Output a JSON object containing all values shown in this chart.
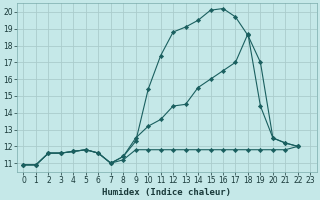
{
  "bg_color": "#c5e8e8",
  "grid_color": "#aacccc",
  "line_color": "#1a5f5f",
  "xlabel": "Humidex (Indice chaleur)",
  "ylabel_ticks": [
    11,
    12,
    13,
    14,
    15,
    16,
    17,
    18,
    19,
    20
  ],
  "xlim": [
    -0.5,
    23.5
  ],
  "ylim": [
    10.5,
    20.5
  ],
  "xticks": [
    0,
    1,
    2,
    3,
    4,
    5,
    6,
    7,
    8,
    9,
    10,
    11,
    12,
    13,
    14,
    15,
    16,
    17,
    18,
    19,
    20,
    21,
    22,
    23
  ],
  "line1_x": [
    0,
    1,
    2,
    3,
    4,
    5,
    6,
    7,
    8,
    9,
    10,
    11,
    12,
    13,
    14,
    15,
    16,
    17,
    18,
    19,
    20,
    21,
    22
  ],
  "line1_y": [
    10.9,
    10.9,
    11.6,
    11.6,
    11.7,
    11.8,
    11.6,
    11.0,
    11.4,
    12.3,
    15.4,
    17.4,
    18.8,
    19.1,
    19.5,
    20.1,
    20.2,
    19.7,
    18.6,
    17.0,
    12.5,
    12.2,
    12.0
  ],
  "line2_x": [
    0,
    1,
    2,
    3,
    4,
    5,
    6,
    7,
    8,
    9,
    10,
    11,
    12,
    13,
    14,
    15,
    16,
    17,
    18,
    19,
    20,
    21,
    22
  ],
  "line2_y": [
    10.9,
    10.9,
    11.6,
    11.6,
    11.7,
    11.8,
    11.6,
    11.0,
    11.4,
    12.5,
    13.2,
    13.6,
    14.4,
    14.5,
    15.5,
    16.0,
    16.5,
    17.0,
    18.7,
    14.4,
    12.5,
    12.2,
    12.0
  ],
  "line3_x": [
    0,
    1,
    2,
    3,
    4,
    5,
    6,
    7,
    8,
    9,
    10,
    11,
    12,
    13,
    14,
    15,
    16,
    17,
    18,
    19,
    20,
    21,
    22
  ],
  "line3_y": [
    10.9,
    10.9,
    11.6,
    11.6,
    11.7,
    11.8,
    11.6,
    11.0,
    11.2,
    11.8,
    11.8,
    11.8,
    11.8,
    11.8,
    11.8,
    11.8,
    11.8,
    11.8,
    11.8,
    11.8,
    11.8,
    11.8,
    12.0
  ]
}
